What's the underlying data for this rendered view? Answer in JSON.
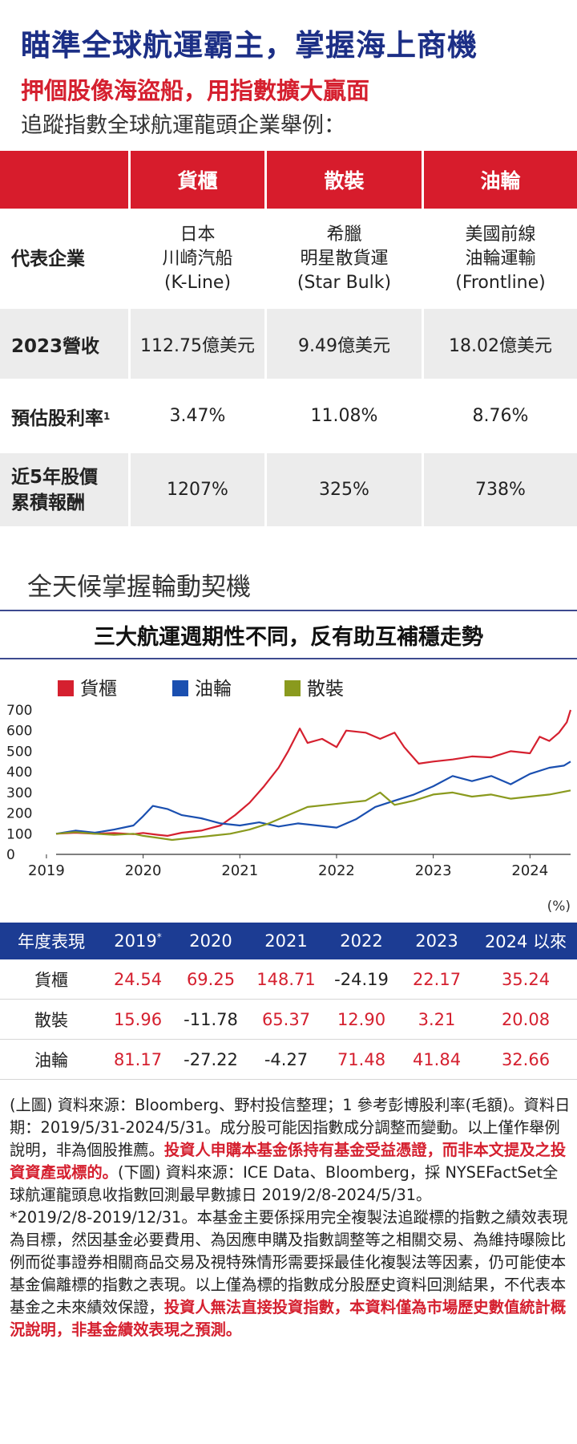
{
  "header": {
    "title": "瞄準全球航運霸主，掌握海上商機",
    "subtitle": "押個股像海盜船，用指數擴大贏面",
    "intro": "追蹤指數全球航運龍頭企業舉例："
  },
  "company_table": {
    "columns": [
      "貨櫃",
      "散裝",
      "油輪"
    ],
    "rows": {
      "rep": {
        "label": "代表企業",
        "values": [
          [
            "日本",
            "川崎汽船",
            "(K-Line)"
          ],
          [
            "希臘",
            "明星散貨運",
            "(Star Bulk)"
          ],
          [
            "美國前線",
            "油輪運輸",
            "(Frontline)"
          ]
        ]
      },
      "revenue": {
        "label": "2023營收",
        "values": [
          "112.75億美元",
          "9.49億美元",
          "18.02億美元"
        ]
      },
      "dividend": {
        "label": "預估股利率",
        "sup": "1",
        "values": [
          "3.47%",
          "11.08%",
          "8.76%"
        ]
      },
      "return5y": {
        "label_line1": "近5年股價",
        "label_line2": "累積報酬",
        "values": [
          "1207%",
          "325%",
          "738%"
        ]
      }
    }
  },
  "section_title": "全天候掌握輪動契機",
  "chart_title": "三大航運週期性不同，反有助互補穩走勢",
  "chart_data": {
    "type": "line",
    "title": "三大航運週期性不同，反有助互補穩走勢",
    "xlabel": "",
    "ylabel": "",
    "x_ticks": [
      "2019",
      "2020",
      "2021",
      "2022",
      "2023",
      "2024"
    ],
    "y_ticks": [
      0,
      100,
      200,
      300,
      400,
      500,
      600,
      700
    ],
    "ylim": [
      0,
      700
    ],
    "xlim": [
      2019.1,
      2024.42
    ],
    "legend_position": "top-left",
    "series": [
      {
        "name": "貨櫃",
        "color": "#d5202f",
        "x": [
          2019.1,
          2019.3,
          2019.5,
          2019.7,
          2019.9,
          2020.0,
          2020.15,
          2020.25,
          2020.4,
          2020.6,
          2020.8,
          2020.95,
          2021.1,
          2021.25,
          2021.4,
          2021.5,
          2021.62,
          2021.7,
          2021.85,
          2022.0,
          2022.1,
          2022.3,
          2022.45,
          2022.6,
          2022.7,
          2022.85,
          2023.0,
          2023.2,
          2023.4,
          2023.6,
          2023.8,
          2024.0,
          2024.1,
          2024.2,
          2024.3,
          2024.38,
          2024.42
        ],
        "y": [
          100,
          105,
          100,
          103,
          98,
          104,
          95,
          90,
          105,
          115,
          140,
          190,
          250,
          330,
          420,
          500,
          610,
          540,
          560,
          520,
          600,
          590,
          560,
          590,
          520,
          440,
          450,
          460,
          475,
          470,
          500,
          490,
          570,
          550,
          590,
          640,
          700
        ]
      },
      {
        "name": "油輪",
        "color": "#1a4fb0",
        "x": [
          2019.1,
          2019.3,
          2019.5,
          2019.7,
          2019.9,
          2020.0,
          2020.1,
          2020.25,
          2020.4,
          2020.6,
          2020.8,
          2021.0,
          2021.2,
          2021.4,
          2021.6,
          2021.8,
          2022.0,
          2022.2,
          2022.4,
          2022.6,
          2022.8,
          2023.0,
          2023.2,
          2023.4,
          2023.6,
          2023.8,
          2024.0,
          2024.2,
          2024.35,
          2024.42
        ],
        "y": [
          100,
          115,
          105,
          120,
          140,
          185,
          235,
          220,
          190,
          175,
          150,
          140,
          155,
          135,
          150,
          140,
          130,
          170,
          230,
          260,
          290,
          330,
          380,
          355,
          380,
          340,
          390,
          420,
          430,
          450
        ]
      },
      {
        "name": "散裝",
        "color": "#8a9a1e",
        "x": [
          2019.1,
          2019.3,
          2019.5,
          2019.7,
          2019.9,
          2020.0,
          2020.15,
          2020.3,
          2020.5,
          2020.7,
          2020.9,
          2021.1,
          2021.3,
          2021.5,
          2021.7,
          2021.9,
          2022.1,
          2022.3,
          2022.45,
          2022.6,
          2022.8,
          2023.0,
          2023.2,
          2023.4,
          2023.6,
          2023.8,
          2024.0,
          2024.2,
          2024.42
        ],
        "y": [
          100,
          108,
          100,
          95,
          100,
          90,
          80,
          70,
          80,
          90,
          100,
          120,
          150,
          190,
          230,
          240,
          250,
          260,
          300,
          240,
          260,
          290,
          300,
          280,
          290,
          270,
          280,
          290,
          310
        ]
      }
    ]
  },
  "performance_table": {
    "unit": "(%)",
    "headers": [
      "年度表現",
      "2019",
      "2020",
      "2021",
      "2022",
      "2023",
      "2024 以來"
    ],
    "header_sup": "*",
    "rows": [
      {
        "label": "貨櫃",
        "values": [
          "24.54",
          "69.25",
          "148.71",
          "-24.19",
          "22.17",
          "35.24"
        ]
      },
      {
        "label": "散裝",
        "values": [
          "15.96",
          "-11.78",
          "65.37",
          "12.90",
          "3.21",
          "20.08"
        ]
      },
      {
        "label": "油輪",
        "values": [
          "81.17",
          "-27.22",
          "-4.27",
          "71.48",
          "41.84",
          "32.66"
        ]
      }
    ]
  },
  "notes": {
    "p1_a": "(上圖) 資料來源：Bloomberg、野村投信整理；1 參考彭博股利率(毛額)。資料日期：2019/5/31-2024/5/31。成分股可能因指數成分調整而變動。以上僅作舉例說明，非為個股推薦。",
    "p1_red": "投資人申購本基金係持有基金受益憑證，而非本文提及之投資資產或標的。",
    "p1_b": "(下圖) 資料來源：ICE Data、Bloomberg，採 NYSEFactSet全球航運龍頭息收指數回測最早數據日 2019/2/8-2024/5/31。",
    "p2_a": "*2019/2/8-2019/12/31。本基金主要係採用完全複製法追蹤標的指數之績效表現為目標，然因基金必要費用、為因應申購及指數調整等之相關交易、為維持曝險比例而從事證券相關商品交易及視特殊情形需要採最佳化複製法等因素，仍可能使本基金偏離標的指數之表現。以上僅為標的指數成分股歷史資料回測結果，不代表本基金之未來績效保證，",
    "p2_red": "投資人無法直接投資指數，本資料僅為市場歷史數值統計概況說明，非基金績效表現之預測。"
  }
}
